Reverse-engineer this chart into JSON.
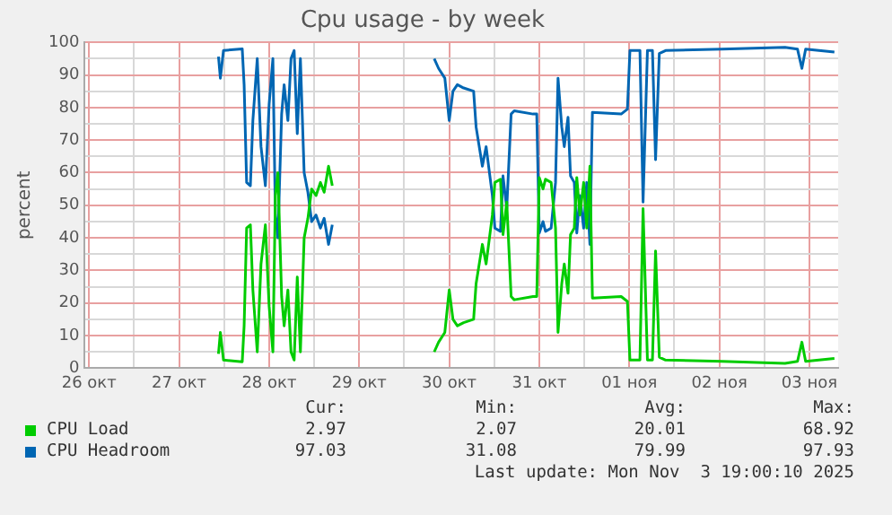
{
  "chart_data": {
    "type": "line",
    "title": "Cpu usage - by week",
    "ylabel": "percent",
    "x": [
      "2025-10-27T22:30",
      "2025-10-27T23:00",
      "2025-10-27T23:50",
      "2025-10-28T04:50",
      "2025-10-28T05:20",
      "2025-10-28T06:00",
      "2025-10-28T07:00",
      "2025-10-28T07:40",
      "2025-10-28T08:50",
      "2025-10-28T09:50",
      "2025-10-28T11:00",
      "2025-10-28T12:00",
      "2025-10-28T13:00",
      "2025-10-28T13:40",
      "2025-10-28T14:20",
      "2025-10-28T15:20",
      "2025-10-28T16:00",
      "2025-10-28T17:00",
      "2025-10-28T17:50",
      "2025-10-28T18:40",
      "2025-10-28T19:30",
      "2025-10-28T20:20",
      "2025-10-28T21:20",
      "2025-10-28T22:20",
      "2025-10-28T23:20",
      "2025-10-29T00:30",
      "2025-10-29T01:40",
      "2025-10-29T02:40",
      "2025-10-29T03:50",
      "2025-10-29T04:50",
      "2025-10-29T19:10",
      "2025-10-30T08:00",
      "2025-10-30T09:10",
      "2025-10-30T10:50",
      "2025-10-30T12:00",
      "2025-10-30T13:00",
      "2025-10-30T14:10",
      "2025-10-30T15:50",
      "2025-10-30T18:30",
      "2025-10-30T19:10",
      "2025-10-30T20:50",
      "2025-10-30T21:50",
      "2025-10-30T23:30",
      "2025-10-31T00:10",
      "2025-10-31T01:40",
      "2025-10-31T02:20",
      "2025-10-31T03:20",
      "2025-10-31T04:30",
      "2025-10-31T05:20",
      "2025-10-31T10:20",
      "2025-10-31T11:20",
      "2025-10-31T12:00",
      "2025-10-31T13:00",
      "2025-10-31T13:40",
      "2025-10-31T15:10",
      "2025-10-31T16:20",
      "2025-10-31T17:00",
      "2025-10-31T18:00",
      "2025-10-31T18:40",
      "2025-10-31T19:40",
      "2025-10-31T20:20",
      "2025-10-31T21:20",
      "2025-10-31T22:00",
      "2025-10-31T22:50",
      "2025-10-31T23:50",
      "2025-11-01T00:40",
      "2025-11-01T01:30",
      "2025-11-01T02:10",
      "2025-11-01T09:50",
      "2025-11-01T11:30",
      "2025-11-01T12:10",
      "2025-11-01T14:50",
      "2025-11-01T15:40",
      "2025-11-01T16:50",
      "2025-11-01T18:10",
      "2025-11-01T19:00",
      "2025-11-01T20:00",
      "2025-11-01T21:40",
      "2025-11-02T12:40",
      "2025-11-03T05:30",
      "2025-11-03T08:50",
      "2025-11-03T10:00",
      "2025-11-03T11:00",
      "2025-11-03T18:40"
    ],
    "series": [
      {
        "name": "CPU Load",
        "color": "#00cc00",
        "values": [
          4.4,
          11,
          2.5,
          2,
          13,
          43,
          44,
          24,
          5,
          32,
          44,
          19,
          5,
          53,
          60,
          22,
          13,
          24,
          5,
          2.5,
          28,
          5,
          40,
          46,
          55,
          53,
          57,
          54,
          62,
          56,
          null,
          5,
          8,
          11,
          24,
          15,
          13,
          14,
          15,
          26,
          38,
          32,
          47,
          57,
          58,
          41,
          51,
          22,
          21,
          22,
          22,
          58.5,
          55,
          58,
          57,
          43,
          11,
          26,
          32,
          23,
          41,
          43,
          58.5,
          47,
          57,
          43,
          62,
          21.5,
          22,
          20.5,
          2.5,
          2.5,
          49,
          2.5,
          2.5,
          36,
          3.4,
          2.5,
          2.1,
          1.5,
          2.1,
          8,
          2.1,
          3
        ]
      },
      {
        "name": "CPU Headroom",
        "color": "#0066b3",
        "values": [
          95.6,
          89,
          97.5,
          98,
          87,
          57,
          56,
          76,
          95,
          68,
          56,
          81,
          95,
          47,
          40,
          78,
          87,
          76,
          95,
          97.5,
          72,
          95,
          60,
          54,
          45,
          47,
          43,
          46,
          38,
          44,
          null,
          95,
          92,
          89,
          76,
          85,
          87,
          86,
          85,
          74,
          62,
          68,
          53,
          43,
          42,
          59,
          49,
          78,
          79,
          78,
          78,
          41.5,
          45,
          42,
          43,
          57,
          89,
          74,
          68,
          77,
          59,
          57,
          41.5,
          53,
          43,
          57,
          38,
          78.5,
          78,
          79.5,
          97.5,
          97.5,
          51,
          97.5,
          97.5,
          64,
          96.6,
          97.5,
          97.9,
          98.5,
          97.9,
          92,
          97.9,
          97
        ]
      }
    ],
    "xlim": [
      "2025-10-26T10:50",
      "2025-11-03T19:40"
    ],
    "xticks": [
      {
        "value": "2025-10-26T12:00",
        "label": "26 окт"
      },
      {
        "value": "2025-10-27",
        "label": null
      },
      {
        "value": "2025-10-27T12:00",
        "label": "27 окт"
      },
      {
        "value": "2025-10-28",
        "label": null
      },
      {
        "value": "2025-10-28T12:00",
        "label": "28 окт"
      },
      {
        "value": "2025-10-29",
        "label": null
      },
      {
        "value": "2025-10-29T12:00",
        "label": "29 окт"
      },
      {
        "value": "2025-10-30",
        "label": null
      },
      {
        "value": "2025-10-30T12:00",
        "label": "30 окт"
      },
      {
        "value": "2025-10-31",
        "label": null
      },
      {
        "value": "2025-10-31T12:00",
        "label": "31 окт"
      },
      {
        "value": "2025-11-01",
        "label": null
      },
      {
        "value": "2025-11-01T12:00",
        "label": "01 ноя"
      },
      {
        "value": "2025-11-02",
        "label": null
      },
      {
        "value": "2025-11-02T12:00",
        "label": "02 ноя"
      },
      {
        "value": "2025-11-03",
        "label": null
      },
      {
        "value": "2025-11-03T12:00",
        "label": "03 ноя"
      }
    ],
    "ylim": [
      0,
      100
    ],
    "yticks": [
      0,
      {
        "value": 5,
        "label": null
      },
      10,
      {
        "value": 15,
        "label": null
      },
      20,
      {
        "value": 25,
        "label": null
      },
      30,
      {
        "value": 35,
        "label": null
      },
      40,
      {
        "value": 45,
        "label": null
      },
      50,
      {
        "value": 55,
        "label": null
      },
      60,
      {
        "value": 65,
        "label": null
      },
      70,
      {
        "value": 75,
        "label": null
      },
      80,
      {
        "value": 85,
        "label": null
      },
      90,
      {
        "value": 95,
        "label": null
      },
      100
    ],
    "grid": true,
    "legend": "bottom",
    "marker": "none",
    "line_style": "solid",
    "annotations": [
      "Cur:",
      "Min:",
      "Avg:",
      "Max:",
      "2.97",
      "2.07",
      "20.01",
      "68.92",
      "97.03",
      "31.08",
      "79.99",
      "97.93",
      "Last update: Mon Nov  3 19:00:10 2025"
    ]
  }
}
